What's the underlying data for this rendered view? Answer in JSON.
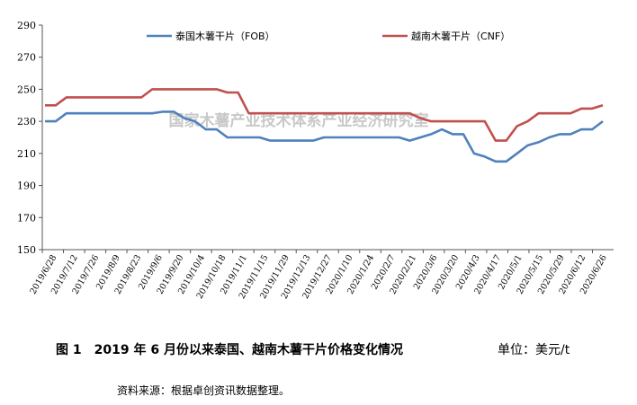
{
  "chart_data": {
    "type": "line",
    "title": "",
    "xlabel": "",
    "ylabel": "",
    "ylim": [
      150,
      290
    ],
    "yticks": [
      150,
      170,
      190,
      210,
      230,
      250,
      270,
      290
    ],
    "x_tick_labels": [
      "2019/6/28",
      "2019/7/12",
      "2019/7/26",
      "2019/8/9",
      "2019/8/23",
      "2019/9/6",
      "2019/9/20",
      "2019/10/4",
      "2019/10/18",
      "2019/11/1",
      "2019/11/15",
      "2019/11/29",
      "2019/12/13",
      "2019/12/27",
      "2020/1/10",
      "2020/1/24",
      "2020/2/7",
      "2020/2/21",
      "2020/3/6",
      "2020/3/20",
      "2020/4/3",
      "2020/4/17",
      "2020/5/1",
      "2020/5/15",
      "2020/5/29",
      "2020/6/12",
      "2020/6/26"
    ],
    "legend_position": "top",
    "grid": false,
    "series": [
      {
        "name": "泰国木薯干片（FOB）",
        "color": "#4f81bd",
        "values": [
          230,
          230,
          235,
          235,
          235,
          235,
          235,
          235,
          235,
          235,
          235,
          236,
          236,
          232,
          230,
          225,
          225,
          220,
          220,
          220,
          220,
          218,
          218,
          218,
          218,
          218,
          220,
          220,
          220,
          220,
          220,
          220,
          220,
          220,
          218,
          220,
          222,
          225,
          222,
          222,
          210,
          208,
          205,
          205,
          210,
          215,
          217,
          220,
          222,
          222,
          225,
          225,
          230
        ]
      },
      {
        "name": "越南木薯干片（CNF）",
        "color": "#c0504d",
        "values": [
          240,
          240,
          245,
          245,
          245,
          245,
          245,
          245,
          245,
          245,
          250,
          250,
          250,
          250,
          250,
          250,
          250,
          248,
          248,
          235,
          235,
          235,
          235,
          235,
          235,
          235,
          235,
          235,
          235,
          235,
          235,
          235,
          235,
          235,
          235,
          232,
          230,
          230,
          230,
          230,
          230,
          230,
          218,
          218,
          227,
          230,
          235,
          235,
          235,
          235,
          238,
          238,
          240
        ]
      }
    ]
  },
  "watermark": "国家木薯产业技术体系产业经济研究室",
  "caption": {
    "title": "图 1　2019 年 6 月份以来泰国、越南木薯干片价格变化情况",
    "unit": "单位：美元/t"
  },
  "source": "资料来源：根据卓创资讯数据整理。"
}
